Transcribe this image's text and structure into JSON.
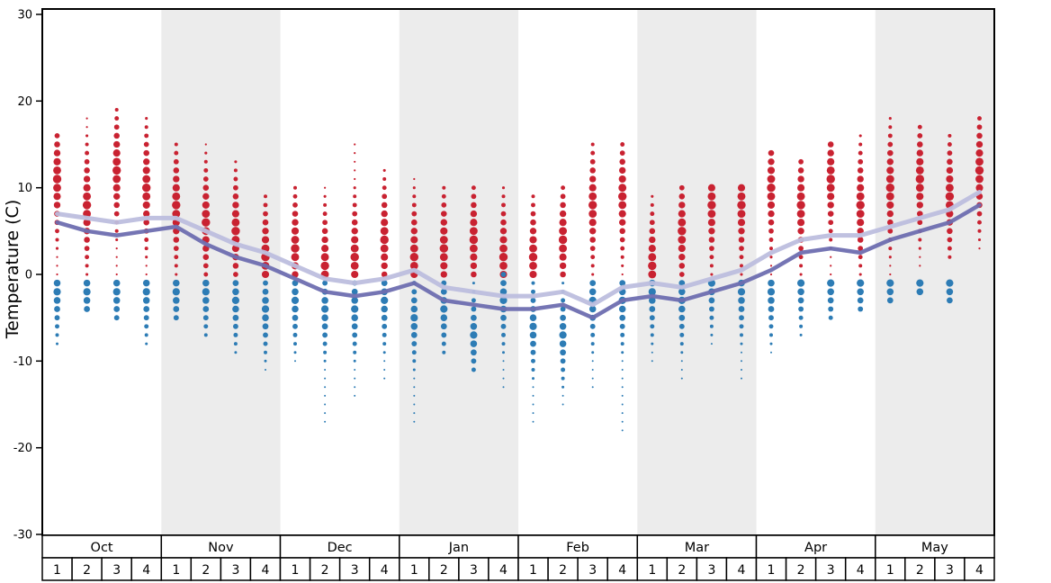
{
  "colors": {
    "red": "#c92231",
    "blue": "#2d7cb5",
    "band": "#ececec",
    "axis": "#000000",
    "table_fill": "#ffffff"
  },
  "chart_data": {
    "type": "scatter",
    "title": "",
    "y_axis": {
      "label": "Temperature (C)",
      "min": -30,
      "max": 30,
      "ticks": [
        30,
        20,
        10,
        0,
        -10,
        -20,
        -30
      ]
    },
    "x_axis": {
      "weeks_per_month": 4,
      "week_labels": [
        "1",
        "2",
        "3",
        "4"
      ],
      "months": [
        {
          "label": "Oct",
          "shaded": false
        },
        {
          "label": "Nov",
          "shaded": true
        },
        {
          "label": "Dec",
          "shaded": false
        },
        {
          "label": "Jan",
          "shaded": true
        },
        {
          "label": "Feb",
          "shaded": false
        },
        {
          "label": "Mar",
          "shaded": true
        },
        {
          "label": "Apr",
          "shaded": false
        },
        {
          "label": "May",
          "shaded": true
        }
      ]
    },
    "series": [
      {
        "name": "average-upper-line",
        "color": "#bdbede",
        "width": 5,
        "values": [
          7,
          6.5,
          6,
          6.5,
          6.5,
          5,
          3.5,
          2.5,
          1,
          -0.5,
          -1,
          -0.5,
          0.5,
          -1.5,
          -2,
          -2.5,
          -2.5,
          -2,
          -3.5,
          -1.5,
          -1,
          -1.5,
          -0.5,
          0.5,
          2.5,
          4,
          4.5,
          4.5,
          5.5,
          6.5,
          7.5,
          9.5
        ]
      },
      {
        "name": "average-lower-line",
        "color": "#6e6eb0",
        "width": 4.5,
        "values": [
          6,
          5,
          4.5,
          5,
          5.5,
          3.5,
          2,
          1,
          -0.5,
          -2,
          -2.5,
          -2,
          -1,
          -3,
          -3.5,
          -4,
          -4,
          -3.5,
          -5,
          -3,
          -2.5,
          -3,
          -2,
          -1,
          0.5,
          2.5,
          3,
          2.5,
          4,
          5,
          6,
          8
        ]
      }
    ],
    "dot_columns": [
      {
        "month": "Oct",
        "week": 1,
        "red": {
          "min": 0,
          "max": 16,
          "peak": 11
        },
        "blue": {
          "min": -8,
          "max": -1,
          "peak": -2
        }
      },
      {
        "month": "Oct",
        "week": 2,
        "red": {
          "min": 0,
          "max": 18,
          "peak": 8
        },
        "blue": {
          "min": -4,
          "max": -1,
          "peak": -2
        }
      },
      {
        "month": "Oct",
        "week": 3,
        "red": {
          "min": 0,
          "max": 19,
          "peak": 12
        },
        "blue": {
          "min": -5,
          "max": -1,
          "peak": -2
        }
      },
      {
        "month": "Oct",
        "week": 4,
        "red": {
          "min": 0,
          "max": 18,
          "peak": 10
        },
        "blue": {
          "min": -8,
          "max": -1,
          "peak": -2
        }
      },
      {
        "month": "Nov",
        "week": 1,
        "red": {
          "min": 0,
          "max": 15,
          "peak": 8
        },
        "blue": {
          "min": -5,
          "max": -1,
          "peak": -2
        }
      },
      {
        "month": "Nov",
        "week": 2,
        "red": {
          "min": 0,
          "max": 15,
          "peak": 6
        },
        "blue": {
          "min": -7,
          "max": -1,
          "peak": -2
        }
      },
      {
        "month": "Nov",
        "week": 3,
        "red": {
          "min": 0,
          "max": 13,
          "peak": 5
        },
        "blue": {
          "min": -9,
          "max": -1,
          "peak": -3
        }
      },
      {
        "month": "Nov",
        "week": 4,
        "red": {
          "min": 0,
          "max": 9,
          "peak": 2
        },
        "blue": {
          "min": -11,
          "max": -1,
          "peak": -4
        }
      },
      {
        "month": "Dec",
        "week": 1,
        "red": {
          "min": 0,
          "max": 10,
          "peak": 3
        },
        "blue": {
          "min": -10,
          "max": -1,
          "peak": -3
        }
      },
      {
        "month": "Dec",
        "week": 2,
        "red": {
          "min": 0,
          "max": 10,
          "peak": 1
        },
        "blue": {
          "min": -17,
          "max": -1,
          "peak": -4
        }
      },
      {
        "month": "Dec",
        "week": 3,
        "red": {
          "min": 0,
          "max": 15,
          "peak": 2
        },
        "blue": {
          "min": -14,
          "max": -1,
          "peak": -4
        }
      },
      {
        "month": "Dec",
        "week": 4,
        "red": {
          "min": 0,
          "max": 12,
          "peak": 4
        },
        "blue": {
          "min": -12,
          "max": -1,
          "peak": -3
        }
      },
      {
        "month": "Jan",
        "week": 1,
        "red": {
          "min": 0,
          "max": 11,
          "peak": 2
        },
        "blue": {
          "min": -17,
          "max": -1,
          "peak": -5
        }
      },
      {
        "month": "Jan",
        "week": 2,
        "red": {
          "min": 0,
          "max": 10,
          "peak": 3
        },
        "blue": {
          "min": -9,
          "max": -1,
          "peak": -4
        }
      },
      {
        "month": "Jan",
        "week": 3,
        "red": {
          "min": 0,
          "max": 10,
          "peak": 4
        },
        "blue": {
          "min": -11,
          "max": -1,
          "peak": -7
        }
      },
      {
        "month": "Jan",
        "week": 4,
        "red": {
          "min": 0,
          "max": 10,
          "peak": 2
        },
        "blue": {
          "min": -13,
          "max": 0,
          "peak": -3
        }
      },
      {
        "month": "Feb",
        "week": 1,
        "red": {
          "min": 0,
          "max": 9,
          "peak": 2
        },
        "blue": {
          "min": -17,
          "max": -1,
          "peak": -6
        }
      },
      {
        "month": "Feb",
        "week": 2,
        "red": {
          "min": 0,
          "max": 10,
          "peak": 4
        },
        "blue": {
          "min": -15,
          "max": -1,
          "peak": -7
        }
      },
      {
        "month": "Feb",
        "week": 3,
        "red": {
          "min": 0,
          "max": 15,
          "peak": 8
        },
        "blue": {
          "min": -13,
          "max": -1,
          "peak": -3
        }
      },
      {
        "month": "Feb",
        "week": 4,
        "red": {
          "min": 0,
          "max": 15,
          "peak": 9
        },
        "blue": {
          "min": -18,
          "max": -1,
          "peak": -3
        }
      },
      {
        "month": "Mar",
        "week": 1,
        "red": {
          "min": 0,
          "max": 9,
          "peak": 1
        },
        "blue": {
          "min": -10,
          "max": -1,
          "peak": -2
        }
      },
      {
        "month": "Mar",
        "week": 2,
        "red": {
          "min": 0,
          "max": 10,
          "peak": 5
        },
        "blue": {
          "min": -12,
          "max": -1,
          "peak": -3
        }
      },
      {
        "month": "Mar",
        "week": 3,
        "red": {
          "min": 0,
          "max": 10,
          "peak": 8
        },
        "blue": {
          "min": -8,
          "max": -1,
          "peak": -1
        }
      },
      {
        "month": "Mar",
        "week": 4,
        "red": {
          "min": 0,
          "max": 10,
          "peak": 8
        },
        "blue": {
          "min": -12,
          "max": -1,
          "peak": -2
        }
      },
      {
        "month": "Apr",
        "week": 1,
        "red": {
          "min": 0,
          "max": 14,
          "peak": 10
        },
        "blue": {
          "min": -9,
          "max": -1,
          "peak": -2
        }
      },
      {
        "month": "Apr",
        "week": 2,
        "red": {
          "min": 0,
          "max": 13,
          "peak": 8
        },
        "blue": {
          "min": -7,
          "max": -1,
          "peak": -1
        }
      },
      {
        "month": "Apr",
        "week": 3,
        "red": {
          "min": 0,
          "max": 15,
          "peak": 11
        },
        "blue": {
          "min": -5,
          "max": -1,
          "peak": -1
        }
      },
      {
        "month": "Apr",
        "week": 4,
        "red": {
          "min": 0,
          "max": 16,
          "peak": 8
        },
        "blue": {
          "min": -4,
          "max": -1,
          "peak": -1
        }
      },
      {
        "month": "May",
        "week": 1,
        "red": {
          "min": 0,
          "max": 18,
          "peak": 10
        },
        "blue": {
          "min": -3,
          "max": -1,
          "peak": -1
        }
      },
      {
        "month": "May",
        "week": 2,
        "red": {
          "min": 1,
          "max": 17,
          "peak": 11
        },
        "blue": {
          "min": -2,
          "max": -1,
          "peak": -1
        }
      },
      {
        "month": "May",
        "week": 3,
        "red": {
          "min": 2,
          "max": 16,
          "peak": 9
        },
        "blue": {
          "min": -3,
          "max": -1,
          "peak": -1
        }
      },
      {
        "month": "May",
        "week": 4,
        "red": {
          "min": 3,
          "max": 18,
          "peak": 12
        },
        "blue": null
      }
    ]
  }
}
